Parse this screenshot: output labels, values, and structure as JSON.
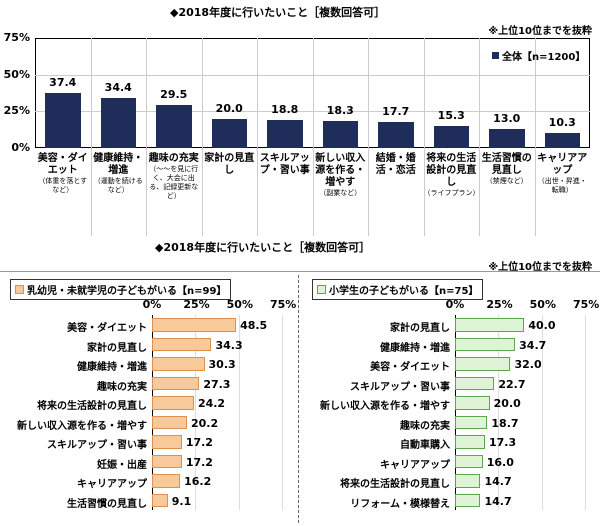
{
  "top": {
    "title": "◆2018年度に行いたいこと［複数回答可］",
    "note": "※上位10位までを抜粋",
    "legend": "全体【n=1200】"
  },
  "bottom": {
    "title": "◆2018年度に行いたいこと［複数回答可］",
    "note": "※上位10位までを抜粋"
  },
  "chart_data": [
    {
      "type": "bar",
      "orientation": "vertical",
      "series": [
        {
          "name": "全体【n=1200】",
          "values": [
            37.4,
            34.4,
            29.5,
            20.0,
            18.8,
            18.3,
            17.7,
            15.3,
            13.0,
            10.3
          ]
        }
      ],
      "categories": [
        "美容・ダイエット",
        "健康維持・増進",
        "趣味の充実",
        "家計の見直し",
        "スキルアップ・習い事",
        "新しい収入源を作る・増やす",
        "結婚・婚活・恋活",
        "将来の生活設計の見直し",
        "生活習慣の見直し",
        "キャリアアップ"
      ],
      "category_notes": [
        "（体重を落とすなど）",
        "（運動を続けるなど）",
        "（～～を見に行く、大会に出る、記録更新など）",
        "",
        "",
        "（副業など）",
        "",
        "（ライフプラン）",
        "（禁煙など）",
        "（出世・昇進・転職）"
      ],
      "value_labels": [
        "37.4",
        "34.4",
        "29.5",
        "20.0",
        "18.8",
        "18.3",
        "17.7",
        "15.3",
        "13.0",
        "10.3"
      ],
      "yticks": [
        "0%",
        "25%",
        "50%",
        "75%"
      ],
      "ylim": [
        0,
        75
      ],
      "color": "#1f2d5a",
      "grid": true
    },
    {
      "type": "bar",
      "orientation": "horizontal",
      "series": [
        {
          "name": "乳幼児・未就学児の子どもがいる【n=99】",
          "values": [
            48.5,
            34.3,
            30.3,
            27.3,
            24.2,
            20.2,
            17.2,
            17.2,
            16.2,
            9.1
          ]
        }
      ],
      "categories": [
        "美容・ダイエット",
        "家計の見直し",
        "健康維持・増進",
        "趣味の充実",
        "将来の生活設計の見直し",
        "新しい収入源を作る・増やす",
        "スキルアップ・習い事",
        "妊娠・出産",
        "キャリアアップ",
        "生活習慣の見直し"
      ],
      "value_labels": [
        "48.5",
        "34.3",
        "30.3",
        "27.3",
        "24.2",
        "20.2",
        "17.2",
        "17.2",
        "16.2",
        "9.1"
      ],
      "xticks": [
        "0%",
        "25%",
        "50%",
        "75%"
      ],
      "xlim": [
        0,
        75
      ],
      "color": "#f8c99a",
      "border": "#e0904a"
    },
    {
      "type": "bar",
      "orientation": "horizontal",
      "series": [
        {
          "name": "小学生の子どもがいる【n=75】",
          "values": [
            40.0,
            34.7,
            32.0,
            22.7,
            20.0,
            18.7,
            17.3,
            16.0,
            14.7,
            14.7
          ]
        }
      ],
      "categories": [
        "家計の見直し",
        "健康維持・増進",
        "美容・ダイエット",
        "スキルアップ・習い事",
        "新しい収入源を作る・増やす",
        "趣味の充実",
        "自動車購入",
        "キャリアアップ",
        "将来の生活設計の見直し",
        "リフォーム・模様替え"
      ],
      "value_labels": [
        "40.0",
        "34.7",
        "32.0",
        "22.7",
        "20.0",
        "18.7",
        "17.3",
        "16.0",
        "14.7",
        "14.7"
      ],
      "xticks": [
        "0%",
        "25%",
        "50%",
        "75%"
      ],
      "xlim": [
        0,
        75
      ],
      "color": "#dff3d6",
      "border": "#5aa84a"
    }
  ]
}
